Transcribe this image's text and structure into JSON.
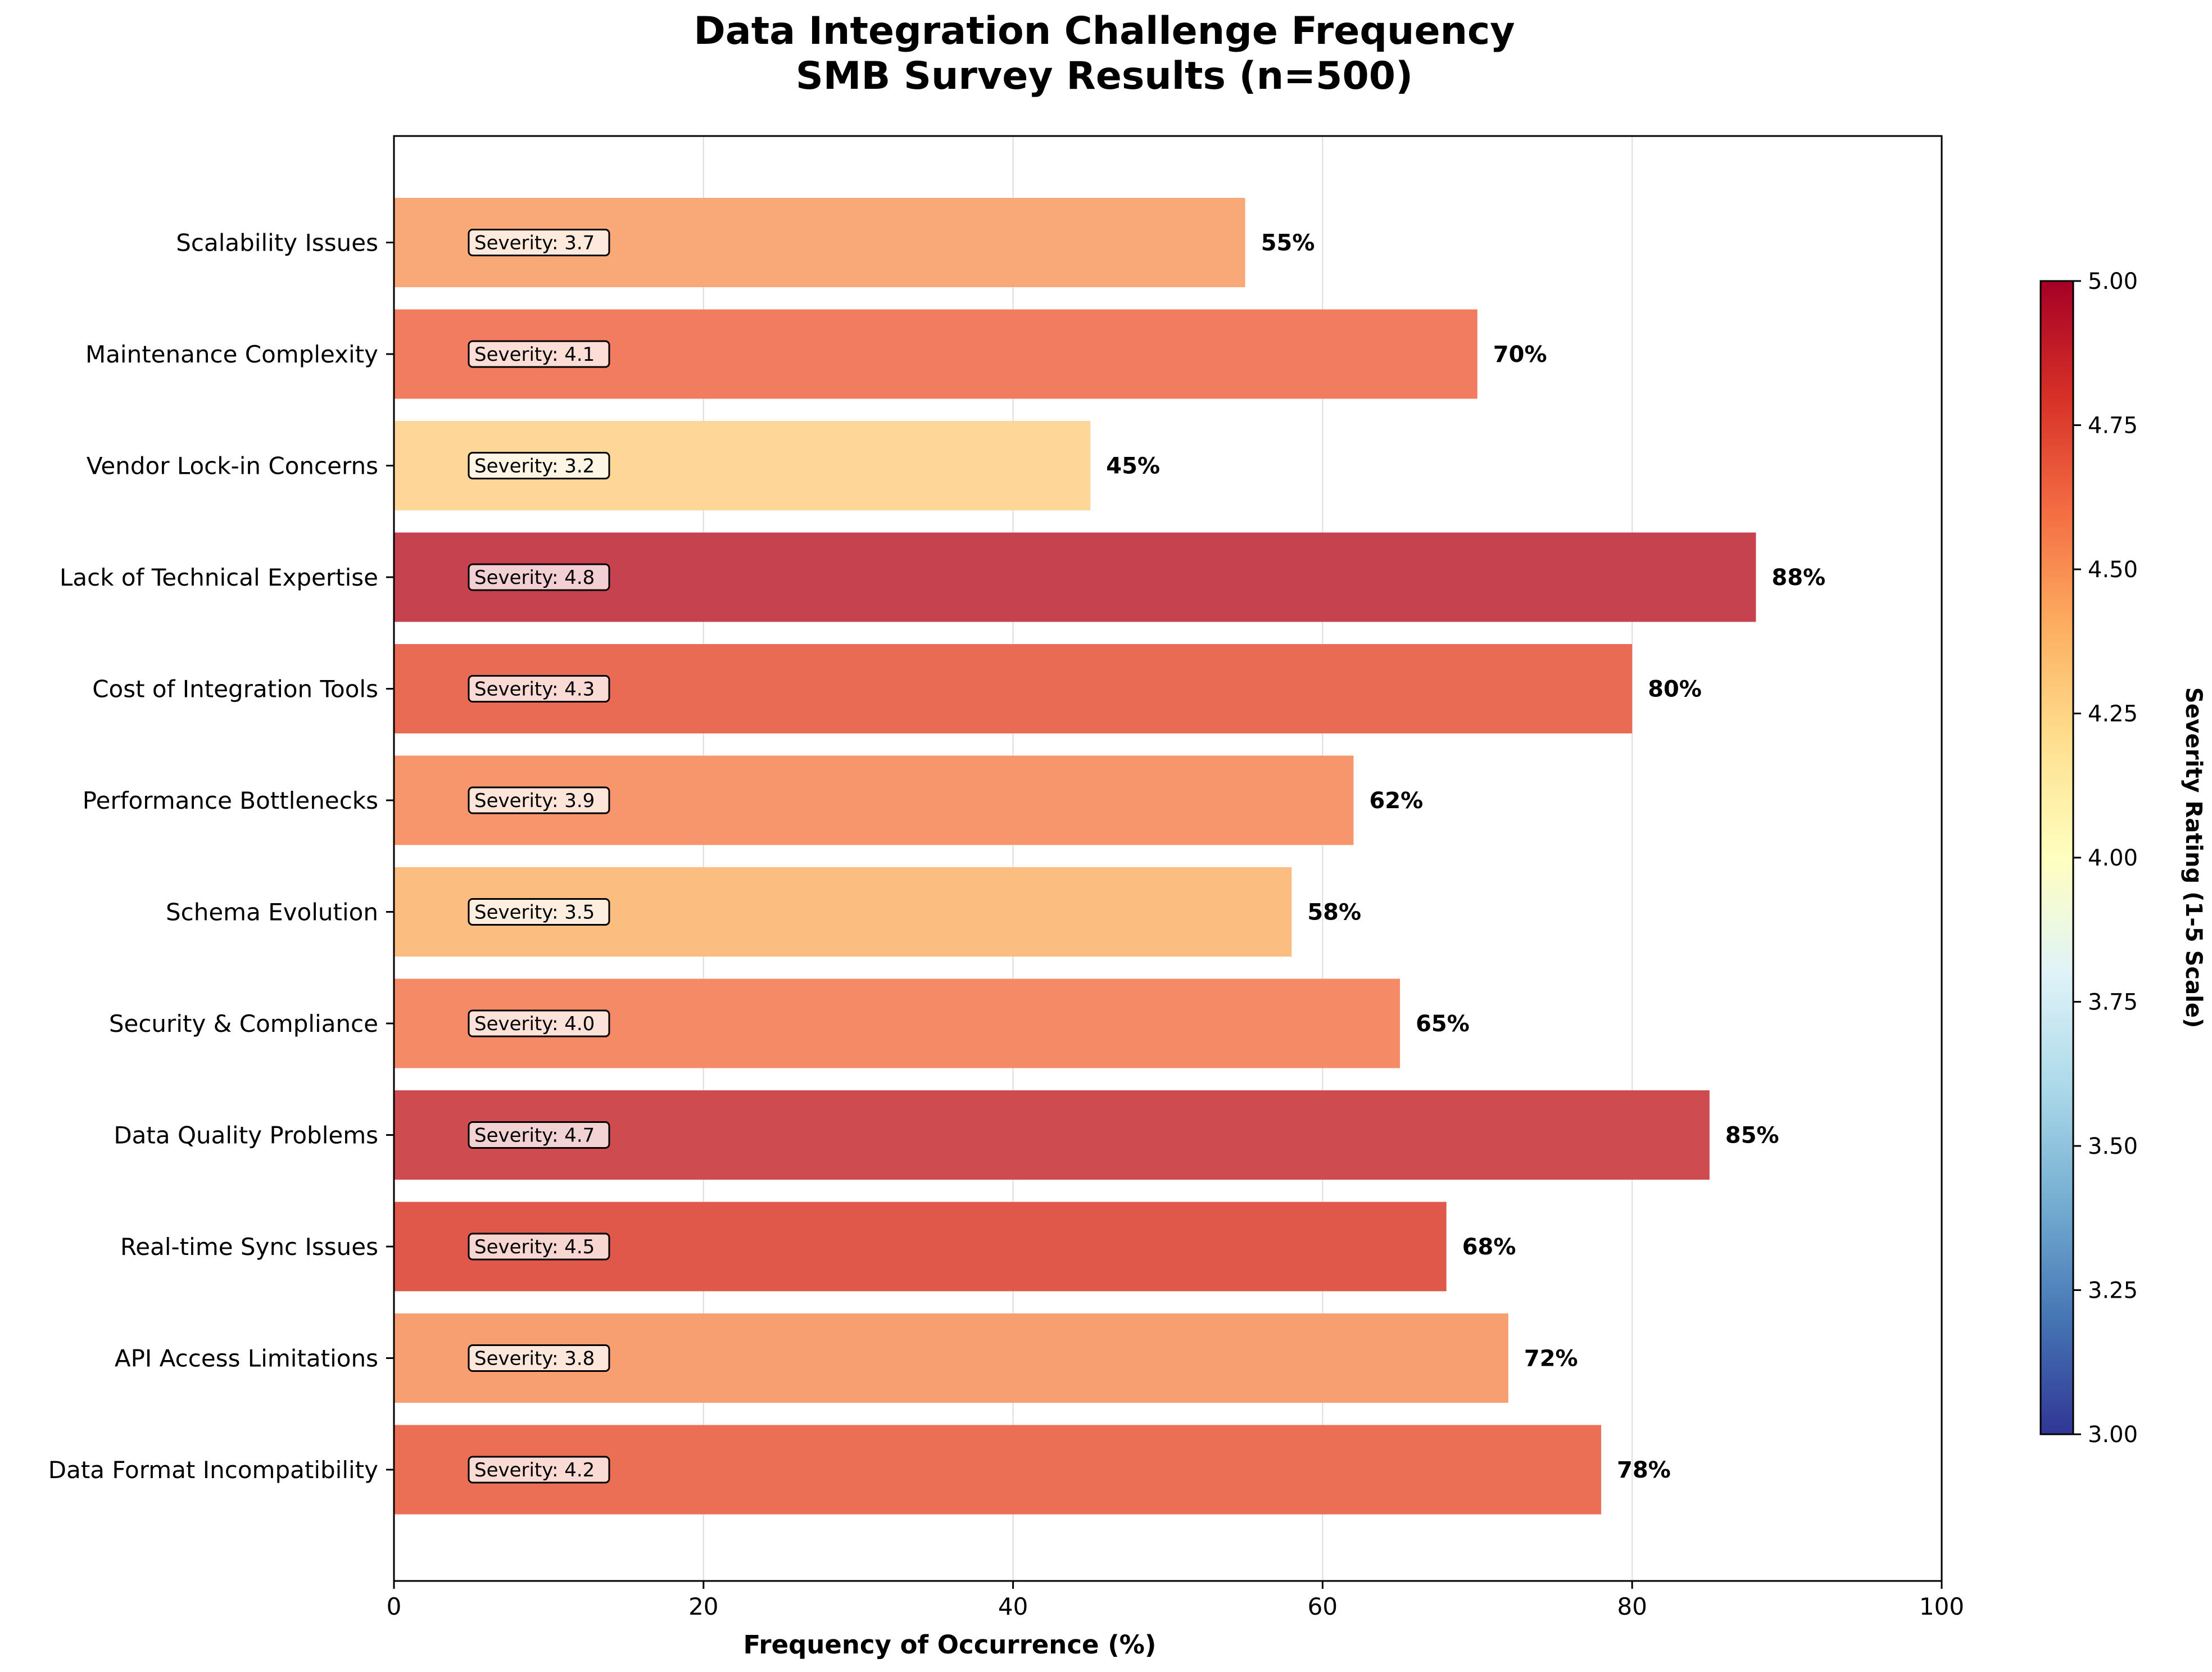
{
  "chart_data": {
    "type": "bar",
    "orientation": "horizontal",
    "title_line1": "Data Integration Challenge Frequency",
    "title_line2": "SMB Survey Results (n=500)",
    "xlabel": "Frequency of Occurrence (%)",
    "xlim": [
      0,
      100
    ],
    "xticks": [
      "0",
      "20",
      "40",
      "60",
      "80",
      "100"
    ],
    "grid": "vertical",
    "categories": [
      "Data Format Incompatibility",
      "API Access Limitations",
      "Real-time Sync Issues",
      "Data Quality Problems",
      "Security & Compliance",
      "Schema Evolution",
      "Performance Bottlenecks",
      "Cost of Integration Tools",
      "Lack of Technical Expertise",
      "Vendor Lock-in Concerns",
      "Maintenance Complexity",
      "Scalability Issues"
    ],
    "values": [
      78,
      72,
      68,
      85,
      65,
      58,
      62,
      80,
      88,
      45,
      70,
      55
    ],
    "value_labels": [
      "78%",
      "72%",
      "68%",
      "85%",
      "65%",
      "58%",
      "62%",
      "80%",
      "88%",
      "45%",
      "70%",
      "55%"
    ],
    "severity": [
      4.2,
      3.8,
      4.5,
      4.7,
      4.0,
      3.5,
      3.9,
      4.3,
      4.8,
      3.2,
      4.1,
      3.7
    ],
    "severity_labels": [
      "Severity: 4.2",
      "Severity: 3.8",
      "Severity: 4.5",
      "Severity: 4.7",
      "Severity: 4.0",
      "Severity: 3.5",
      "Severity: 3.9",
      "Severity: 4.3",
      "Severity: 4.8",
      "Severity: 3.2",
      "Severity: 4.1",
      "Severity: 3.7"
    ],
    "bar_colors": [
      "#ea6f55",
      "#f79f70",
      "#e05849",
      "#ce4b50",
      "#f48a66",
      "#fbbd80",
      "#f7966c",
      "#e96b54",
      "#c7424f",
      "#fdd698",
      "#f17c60",
      "#f9a978"
    ],
    "colorbar": {
      "label": "Severity Rating (1-5 Scale)",
      "range": [
        3.0,
        5.0
      ],
      "ticks": [
        "3.00",
        "3.25",
        "3.50",
        "3.75",
        "4.00",
        "4.25",
        "4.50",
        "4.75",
        "5.00"
      ],
      "colormap_stops": [
        "#313695",
        "#4575b4",
        "#74add1",
        "#abd9e9",
        "#e0f3f8",
        "#ffffbf",
        "#fee090",
        "#fdae61",
        "#f46d43",
        "#d73027",
        "#a50026"
      ]
    }
  }
}
